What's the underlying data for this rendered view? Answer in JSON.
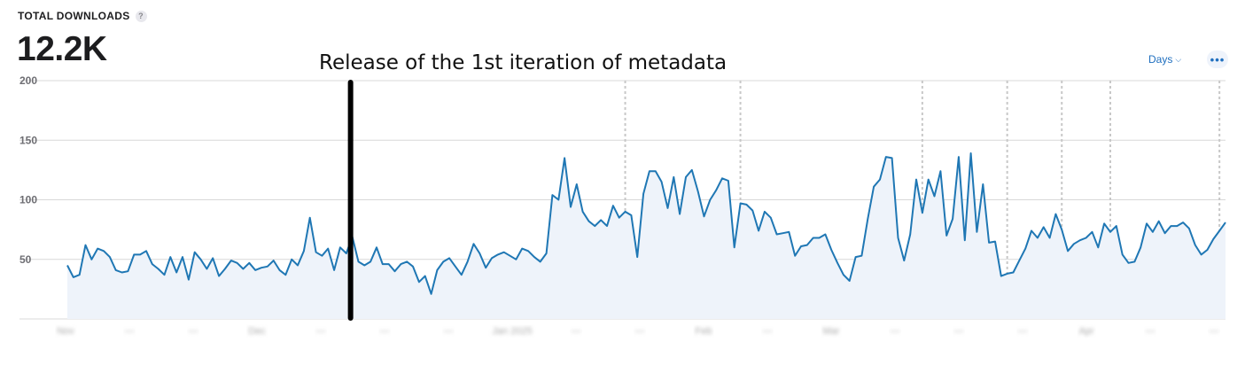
{
  "header": {
    "title": "TOTAL DOWNLOADS",
    "help": "?",
    "value": "12.2K"
  },
  "annotation": {
    "text": "Release of the 1st iteration of metadata"
  },
  "controls": {
    "period_label": "Days",
    "period_icon": "chevron-down-icon",
    "more_icon": "ellipsis-icon",
    "more_glyph": "•••"
  },
  "colors": {
    "line": "#1f77b4",
    "area": "#eef3fa",
    "grid": "#d8d8d8",
    "annotation_marker": "#000000"
  },
  "chart_data": {
    "type": "area",
    "title": "",
    "xlabel": "",
    "ylabel": "",
    "ylim": [
      0,
      200
    ],
    "yticks": [
      50,
      100,
      150,
      200
    ],
    "grid": true,
    "x_tick_labels": [
      "Nov",
      "",
      "",
      "Dec",
      "",
      "",
      "",
      "Jan 2025",
      "",
      "",
      "Feb",
      "",
      "Mar",
      "",
      "",
      "",
      "Apr",
      "",
      ""
    ],
    "x_label_note": "x-axis tick labels are blurred/illegible in the screenshot",
    "annotation_index": 47,
    "event_marker_indices": [
      92,
      111,
      141,
      155,
      164,
      172,
      190,
      197,
      198,
      205
    ],
    "series": [
      {
        "values": [
          45,
          35,
          37,
          62,
          50,
          59,
          57,
          52,
          41,
          39,
          40,
          54,
          54,
          57,
          46,
          42,
          37,
          52,
          39,
          52,
          33,
          56,
          50,
          42,
          51,
          36,
          42,
          49,
          47,
          42,
          47,
          41,
          43,
          44,
          49,
          41,
          37,
          50,
          45,
          57,
          85,
          56,
          53,
          59,
          41,
          60,
          55,
          69,
          48,
          45,
          48,
          60,
          46,
          46,
          40,
          46,
          48,
          44,
          31,
          36,
          21,
          41,
          48,
          51,
          44,
          37,
          48,
          63,
          55,
          43,
          51,
          54,
          56,
          53,
          50,
          59,
          57,
          52,
          48,
          55,
          104,
          100,
          135,
          94,
          113,
          90,
          82,
          78,
          83,
          78,
          95,
          85,
          90,
          87,
          52,
          105,
          124,
          124,
          115,
          93,
          119,
          88,
          119,
          125,
          107,
          86,
          100,
          108,
          118,
          116,
          60,
          97,
          96,
          91,
          74,
          90,
          85,
          71,
          72,
          73,
          53,
          61,
          62,
          68,
          68,
          71,
          58,
          47,
          37,
          32,
          52,
          53,
          84,
          111,
          117,
          136,
          135,
          68,
          49,
          71,
          117,
          89,
          117,
          103,
          124,
          70,
          84,
          136,
          66,
          139,
          73,
          113,
          64,
          65,
          36,
          38,
          39,
          49,
          59,
          74,
          68,
          77,
          68,
          88,
          75,
          57,
          63,
          66,
          68,
          73,
          60,
          80,
          73,
          78,
          54,
          47,
          48,
          60,
          80,
          73,
          82,
          72,
          78,
          78,
          81,
          76,
          62,
          54,
          58,
          67,
          74,
          81
        ]
      }
    ]
  }
}
